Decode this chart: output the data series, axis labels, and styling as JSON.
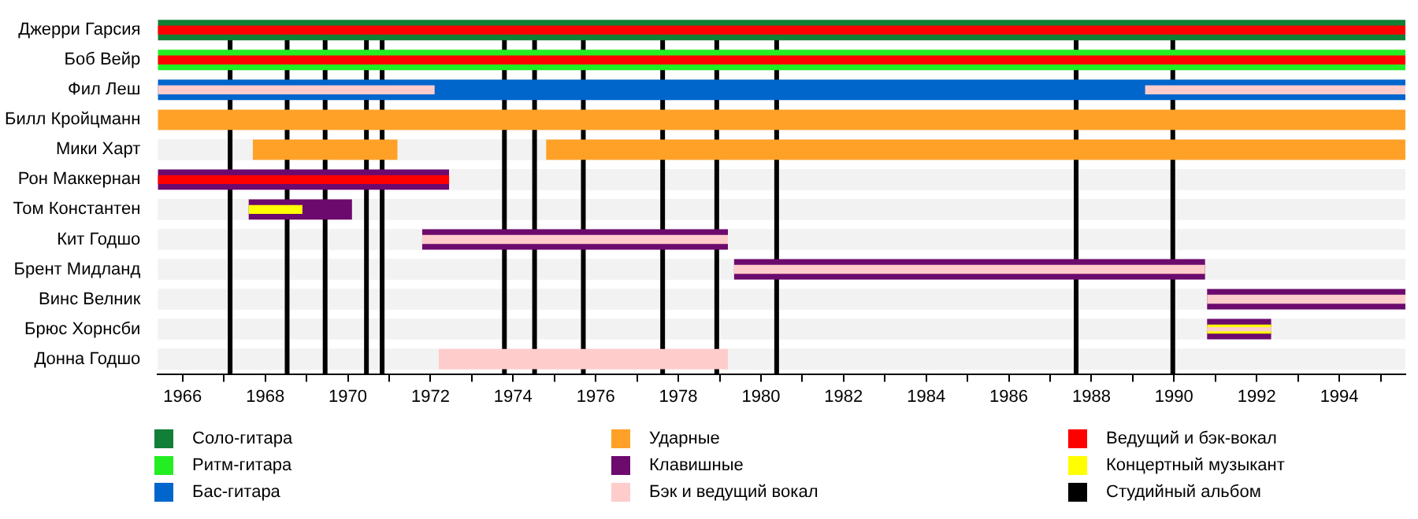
{
  "chart_data": {
    "type": "bar",
    "orientation": "horizontal",
    "categories": [
      "Джерри Гарсия",
      "Боб Вейр",
      "Фил Леш",
      "Билл Кройцманн",
      "Мики Харт",
      "Рон Маккернан",
      "Том Константен",
      "Кит Годшо",
      "Брент Мидланд",
      "Винс Велник",
      "Брюс Хорнсби",
      "Донна Годшо"
    ],
    "series": [
      {
        "name": "Соло-гитара",
        "color": "#117f35",
        "base": [
          1965.4,
          null,
          null,
          null,
          null,
          null,
          null,
          null,
          null,
          null,
          null,
          null
        ],
        "values": [
          30.2,
          null,
          null,
          null,
          null,
          null,
          null,
          null,
          null,
          null,
          null,
          null
        ]
      },
      {
        "name": "Ритм-гитара",
        "color": "#22ee22",
        "base": [
          null,
          1965.4,
          null,
          null,
          null,
          null,
          null,
          null,
          null,
          null,
          null,
          null
        ],
        "values": [
          null,
          30.2,
          null,
          null,
          null,
          null,
          null,
          null,
          null,
          null,
          null,
          null
        ]
      },
      {
        "name": "Бас-гитара",
        "color": "#0066cc",
        "base": [
          null,
          null,
          1965.4,
          null,
          null,
          null,
          null,
          null,
          null,
          null,
          null,
          null
        ],
        "values": [
          null,
          null,
          30.2,
          null,
          null,
          null,
          null,
          null,
          null,
          null,
          null,
          null
        ]
      },
      {
        "name": "Ударные",
        "color": "#ffa127",
        "base": [
          null,
          null,
          null,
          1965.4,
          1967.7,
          null,
          null,
          null,
          null,
          null,
          null,
          null
        ],
        "values": [
          null,
          null,
          null,
          30.2,
          3.5,
          null,
          null,
          null,
          null,
          null,
          null,
          null
        ]
      },
      {
        "color": "#ffa127",
        "base": [
          null,
          null,
          null,
          null,
          1974.8,
          null,
          null,
          null,
          null,
          null,
          null,
          null
        ],
        "values": [
          null,
          null,
          null,
          null,
          20.8,
          null,
          null,
          null,
          null,
          null,
          null,
          null
        ]
      },
      {
        "name": "Клавишные",
        "color": "#6c0a6e",
        "base": [
          null,
          null,
          null,
          null,
          null,
          1965.4,
          1967.6,
          1971.8,
          1979.35,
          1990.8,
          1990.8,
          null
        ],
        "values": [
          null,
          null,
          null,
          null,
          null,
          7.05,
          2.5,
          7.4,
          11.4,
          4.8,
          1.55,
          null
        ]
      },
      {
        "name": "Бэк и ведущий вокал",
        "color": "#ffcccc",
        "base": [
          null,
          null,
          null,
          null,
          null,
          null,
          null,
          null,
          null,
          null,
          null,
          1972.2
        ],
        "values": [
          null,
          null,
          null,
          null,
          null,
          null,
          null,
          null,
          null,
          null,
          null,
          7.0
        ]
      },
      {
        "name": "Ведущий и бэк-вокал",
        "color": "#ff0000",
        "base": [
          1965.4,
          1965.4,
          null,
          null,
          null,
          1965.4,
          null,
          null,
          null,
          null,
          null,
          null
        ],
        "values": [
          30.2,
          30.2,
          null,
          null,
          null,
          7.05,
          null,
          null,
          null,
          null,
          null,
          null
        ]
      },
      {
        "color": "#ffcccc",
        "base": [
          null,
          null,
          1965.4,
          null,
          null,
          null,
          null,
          1971.8,
          1979.35,
          1990.8,
          null,
          null
        ],
        "values": [
          null,
          null,
          6.7,
          null,
          null,
          null,
          null,
          7.4,
          11.4,
          4.8,
          null,
          null
        ]
      },
      {
        "color": "#ffcccc",
        "base": [
          null,
          null,
          1989.3,
          null,
          null,
          null,
          null,
          null,
          null,
          null,
          null,
          null
        ],
        "values": [
          null,
          null,
          6.3,
          null,
          null,
          null,
          null,
          null,
          null,
          null,
          null,
          null
        ]
      },
      {
        "name": "Концертный музыкант",
        "color": "#ffff00",
        "base": [
          null,
          null,
          null,
          null,
          null,
          null,
          1967.6,
          null,
          null,
          null,
          1990.8,
          null
        ],
        "values": [
          null,
          null,
          null,
          null,
          null,
          null,
          1.3,
          null,
          null,
          null,
          1.55,
          null
        ]
      },
      {
        "color": "#ffcccc",
        "base": [
          null,
          null,
          null,
          null,
          null,
          null,
          null,
          null,
          null,
          null,
          1990.8,
          null
        ],
        "values": [
          null,
          null,
          null,
          null,
          null,
          null,
          null,
          null,
          null,
          null,
          1.55,
          null
        ]
      }
    ],
    "xlim": [
      1965.4,
      1995.6
    ],
    "xticks": [
      1966,
      {
        "value": 1967,
        "label": null
      },
      1968,
      {
        "value": 1969,
        "label": null
      },
      1970,
      {
        "value": 1971,
        "label": null
      },
      1972,
      {
        "value": 1973,
        "label": null
      },
      1974,
      {
        "value": 1975,
        "label": null
      },
      1976,
      {
        "value": 1977,
        "label": null
      },
      1978,
      {
        "value": 1979,
        "label": null
      },
      1980,
      {
        "value": 1981,
        "label": null
      },
      1982,
      {
        "value": 1983,
        "label": null
      },
      1984,
      {
        "value": 1985,
        "label": null
      },
      1986,
      {
        "value": 1987,
        "label": null
      },
      1988,
      {
        "value": 1989,
        "label": null
      },
      1990,
      {
        "value": 1991,
        "label": null
      },
      1992,
      {
        "value": 1993,
        "label": null
      },
      1994,
      {
        "value": 1995,
        "label": null
      }
    ],
    "ref_lines": [
      {
        "axis": "x",
        "value": 1967.15,
        "label": "Студийный альбом",
        "color": "#000000"
      },
      {
        "axis": "x",
        "value": 1968.53,
        "color": "#000000"
      },
      {
        "axis": "x",
        "value": 1969.45,
        "color": "#000000"
      },
      {
        "axis": "x",
        "value": 1970.45,
        "color": "#000000"
      },
      {
        "axis": "x",
        "value": 1970.83,
        "color": "#000000"
      },
      {
        "axis": "x",
        "value": 1973.79,
        "color": "#000000"
      },
      {
        "axis": "x",
        "value": 1974.52,
        "color": "#000000"
      },
      {
        "axis": "x",
        "value": 1975.7,
        "color": "#000000"
      },
      {
        "axis": "x",
        "value": 1977.62,
        "color": "#000000"
      },
      {
        "axis": "x",
        "value": 1978.93,
        "color": "#000000"
      },
      {
        "axis": "x",
        "value": 1980.38,
        "color": "#000000"
      },
      {
        "axis": "x",
        "value": 1987.63,
        "color": "#000000"
      },
      {
        "axis": "x",
        "value": 1989.97,
        "color": "#000000"
      }
    ],
    "legend": "bottom"
  }
}
